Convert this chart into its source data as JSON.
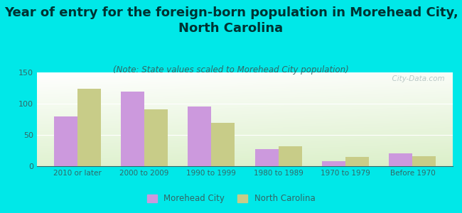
{
  "title": "Year of entry for the foreign-born population in Morehead City,\nNorth Carolina",
  "subtitle": "(Note: State values scaled to Morehead City population)",
  "categories": [
    "2010 or later",
    "2000 to 2009",
    "1990 to 1999",
    "1980 to 1989",
    "1970 to 1979",
    "Before 1970"
  ],
  "morehead_city": [
    79,
    119,
    96,
    27,
    8,
    21
  ],
  "north_carolina": [
    124,
    91,
    69,
    32,
    15,
    16
  ],
  "morehead_color": "#cc99dd",
  "nc_color": "#c8cc88",
  "background_outer": "#00e8e8",
  "background_plot_top": "#ffffff",
  "background_plot_bottom": "#d8ecd0",
  "title_fontsize": 13,
  "subtitle_fontsize": 8.5,
  "ylabel_max": 150,
  "yticks": [
    0,
    50,
    100,
    150
  ],
  "legend_labels": [
    "Morehead City",
    "North Carolina"
  ],
  "watermark": "  City-Data.com"
}
